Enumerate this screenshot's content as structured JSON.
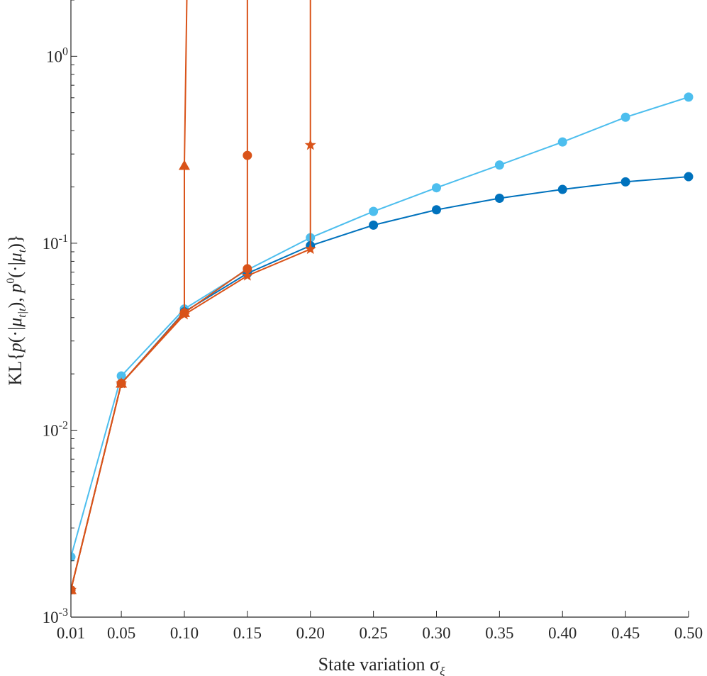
{
  "chart_data": {
    "type": "line",
    "xlabel": "State variation σ",
    "xlabel_subscript": "ξ",
    "ylabel": "KL{p(·|μ_{t|t}), p⁰(·|μ_t)}",
    "ylabel_parts": {
      "prefix": "KL{",
      "p1": "p",
      "mid1": "(·|",
      "mu1": "μ",
      "sub1": "t|t",
      "mid2": "), ",
      "p2": "p",
      "sup2": "0",
      "mid3": "(·|",
      "mu2": "μ",
      "sub2": "t",
      "suffix": ")}"
    },
    "y_scale": "log",
    "xlim": [
      0.01,
      0.5
    ],
    "ylim": [
      0.001,
      2.0
    ],
    "x_ticks": [
      0.01,
      0.05,
      0.1,
      0.15,
      0.2,
      0.25,
      0.3,
      0.35,
      0.4,
      0.45,
      0.5
    ],
    "x_tick_labels": [
      "0.01",
      "0.05",
      "0.10",
      "0.15",
      "0.20",
      "0.25",
      "0.30",
      "0.35",
      "0.40",
      "0.45",
      "0.50"
    ],
    "y_ticks": [
      {
        "value": 0.001,
        "base": "10",
        "exp": "-3"
      },
      {
        "value": 0.01,
        "base": "10",
        "exp": "-2"
      },
      {
        "value": 0.1,
        "base": "10",
        "exp": "-1"
      },
      {
        "value": 1,
        "base": "10",
        "exp": "0"
      }
    ],
    "grid": false,
    "legend": "none",
    "series": [
      {
        "color": "#4DBEEE",
        "marker": "circle",
        "x": [
          0.01,
          0.05,
          0.1,
          0.15,
          0.2,
          0.25,
          0.3,
          0.35,
          0.4,
          0.45,
          0.5
        ],
        "y": [
          0.0021,
          0.0195,
          0.0445,
          0.072,
          0.107,
          0.148,
          0.198,
          0.262,
          0.348,
          0.472,
          0.605
        ]
      },
      {
        "color": "#0072BD",
        "marker": "circle",
        "x": [
          0.01,
          0.05,
          0.1,
          0.15,
          0.2,
          0.25,
          0.3,
          0.35,
          0.4,
          0.45,
          0.5
        ],
        "y": [
          0.0014,
          0.0178,
          0.043,
          0.069,
          0.097,
          0.125,
          0.151,
          0.174,
          0.194,
          0.213,
          0.227
        ]
      },
      {
        "color": "#D95319",
        "marker": "triangle",
        "x": [
          0.01,
          0.05,
          0.1,
          0.1
        ],
        "y": [
          0.0014,
          0.0178,
          0.0425,
          0.26
        ],
        "exits_top_at_x": 0.102
      },
      {
        "color": "#D95319",
        "marker": "circle",
        "x": [
          0.01,
          0.05,
          0.1,
          0.15,
          0.15
        ],
        "y": [
          0.0014,
          0.0178,
          0.0425,
          0.073,
          0.295
        ],
        "exits_top_at_x": 0.15
      },
      {
        "color": "#D95319",
        "marker": "star",
        "x": [
          0.01,
          0.05,
          0.1,
          0.15,
          0.2,
          0.2
        ],
        "y": [
          0.0014,
          0.0178,
          0.0415,
          0.067,
          0.093,
          0.335
        ],
        "exits_top_at_x": 0.2
      }
    ]
  }
}
